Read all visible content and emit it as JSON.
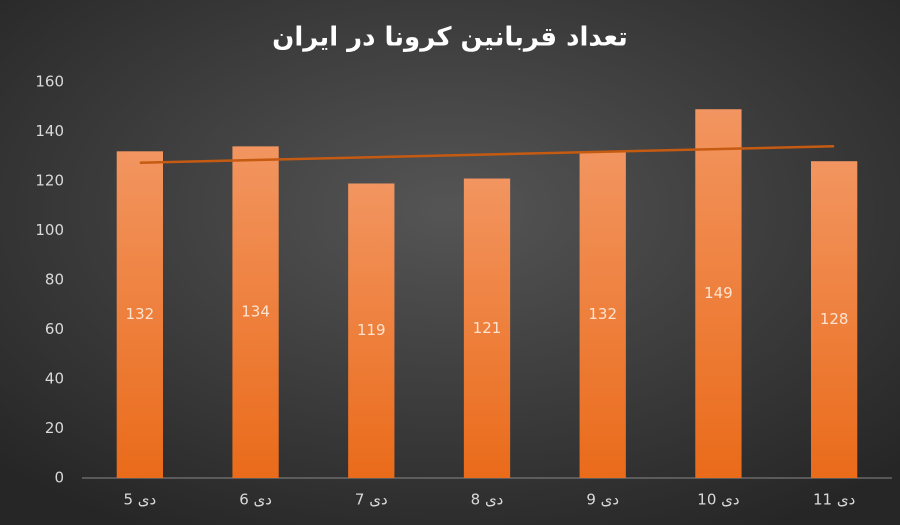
{
  "chart_data": {
    "type": "bar",
    "title": "تعداد قربانین کرونا در ایران",
    "categories": [
      "5 دی",
      "6 دی",
      "7 دی",
      "8 دی",
      "9 دی",
      "10 دی",
      "11 دی"
    ],
    "values": [
      132,
      134,
      119,
      121,
      132,
      149,
      128
    ],
    "color": "#ed7d31",
    "trendline": true,
    "trendline_color": "#c55a11",
    "ylim": [
      0,
      160
    ],
    "yticks": [
      0,
      20,
      40,
      60,
      80,
      100,
      120,
      140,
      160
    ],
    "grid": false
  }
}
